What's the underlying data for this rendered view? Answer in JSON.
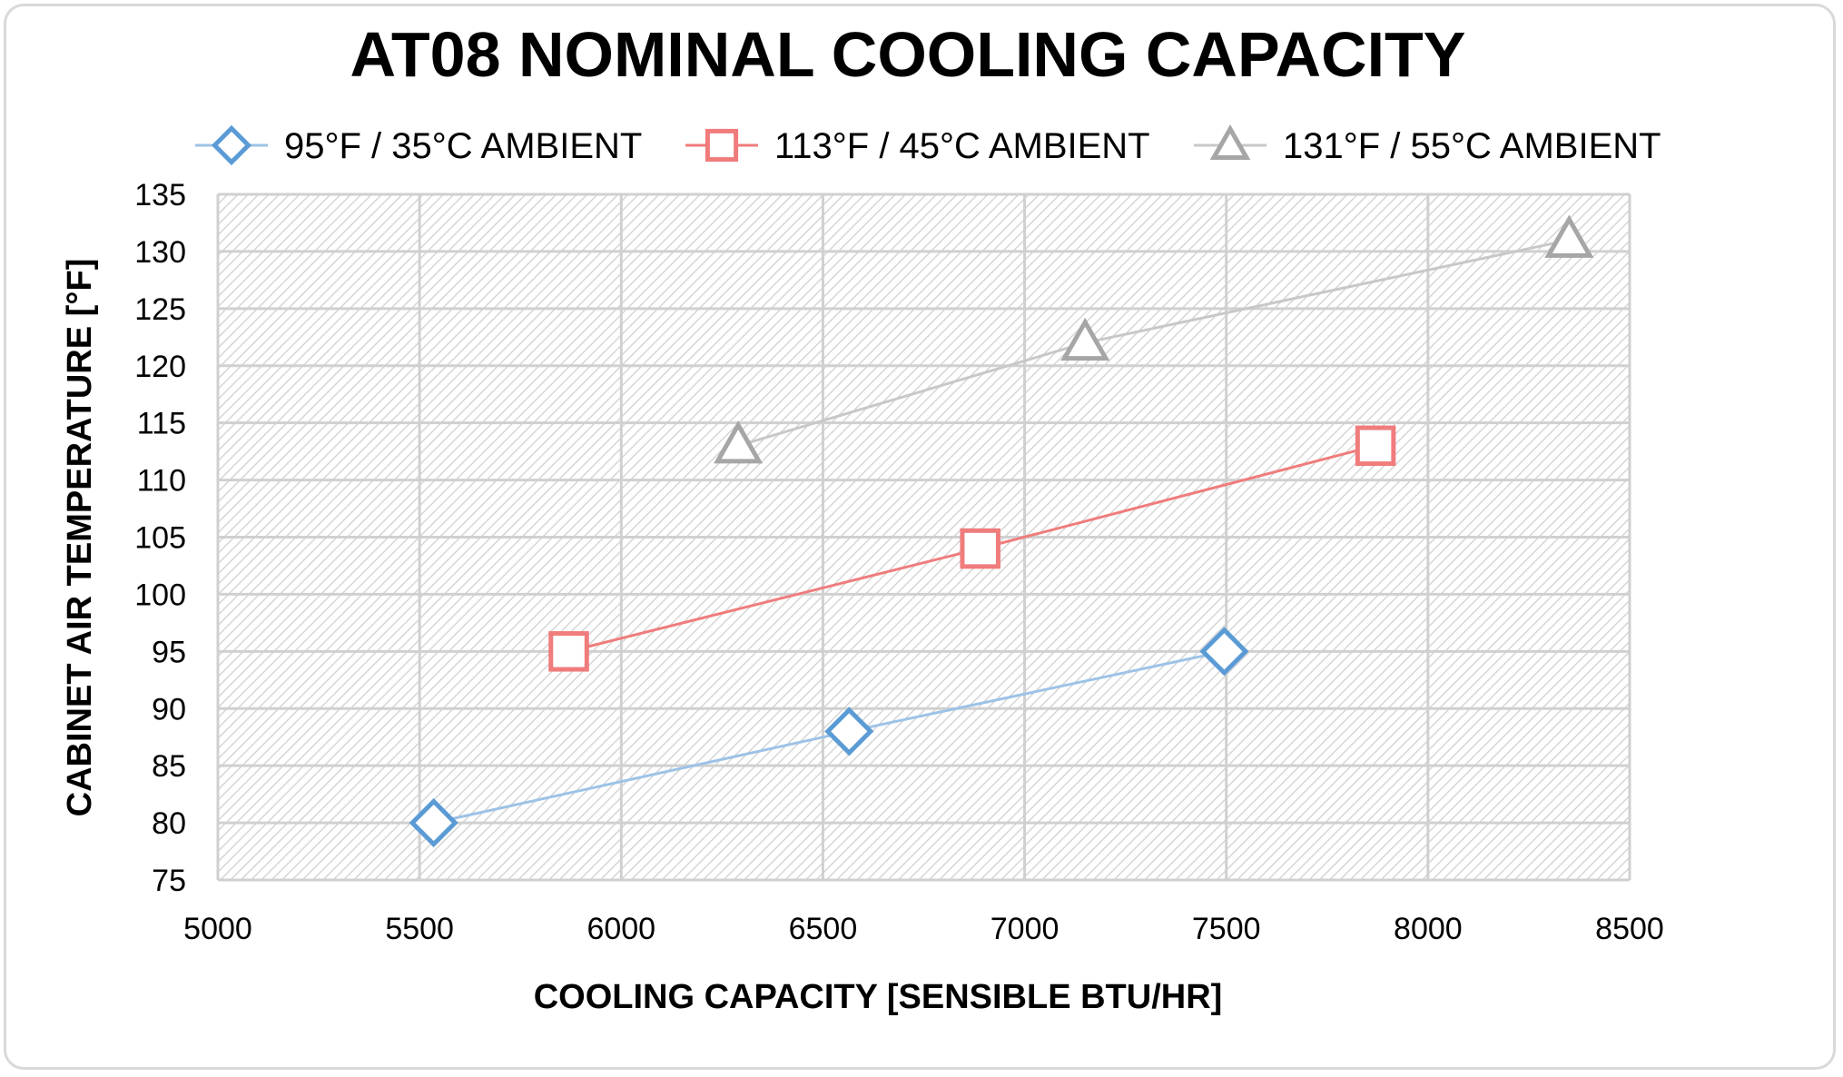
{
  "chart_data": {
    "type": "scatter",
    "title": "AT08 NOMINAL COOLING CAPACITY",
    "xlabel": "COOLING CAPACITY [SENSIBLE BTU/HR]",
    "ylabel": "CABINET AIR TEMPERATURE  [°F]",
    "xlim": [
      5000,
      8500
    ],
    "ylim": [
      75,
      135
    ],
    "xticks": [
      5000,
      5500,
      6000,
      6500,
      7000,
      7500,
      8000,
      8500
    ],
    "yticks": [
      75,
      80,
      85,
      90,
      95,
      100,
      105,
      110,
      115,
      120,
      125,
      130,
      135
    ],
    "grid": true,
    "legend_position": "top",
    "series": [
      {
        "name": "95°F / 35°C AMBIENT",
        "marker": "diamond",
        "color": "#5b9bd5",
        "line_color": "#9dc3e6",
        "x": [
          5535,
          6565,
          7495
        ],
        "y": [
          80,
          88,
          95
        ]
      },
      {
        "name": "113°F / 45°C AMBIENT",
        "marker": "square",
        "color": "#f07c7c",
        "line_color": "#f07c7c",
        "x": [
          5870,
          6890,
          7870
        ],
        "y": [
          95,
          104,
          113
        ]
      },
      {
        "name": "131°F / 55°C AMBIENT",
        "marker": "triangle",
        "color": "#a6a6a6",
        "line_color": "#c8c8c8",
        "x": [
          6290,
          7150,
          8350
        ],
        "y": [
          113,
          122,
          131
        ]
      }
    ]
  }
}
